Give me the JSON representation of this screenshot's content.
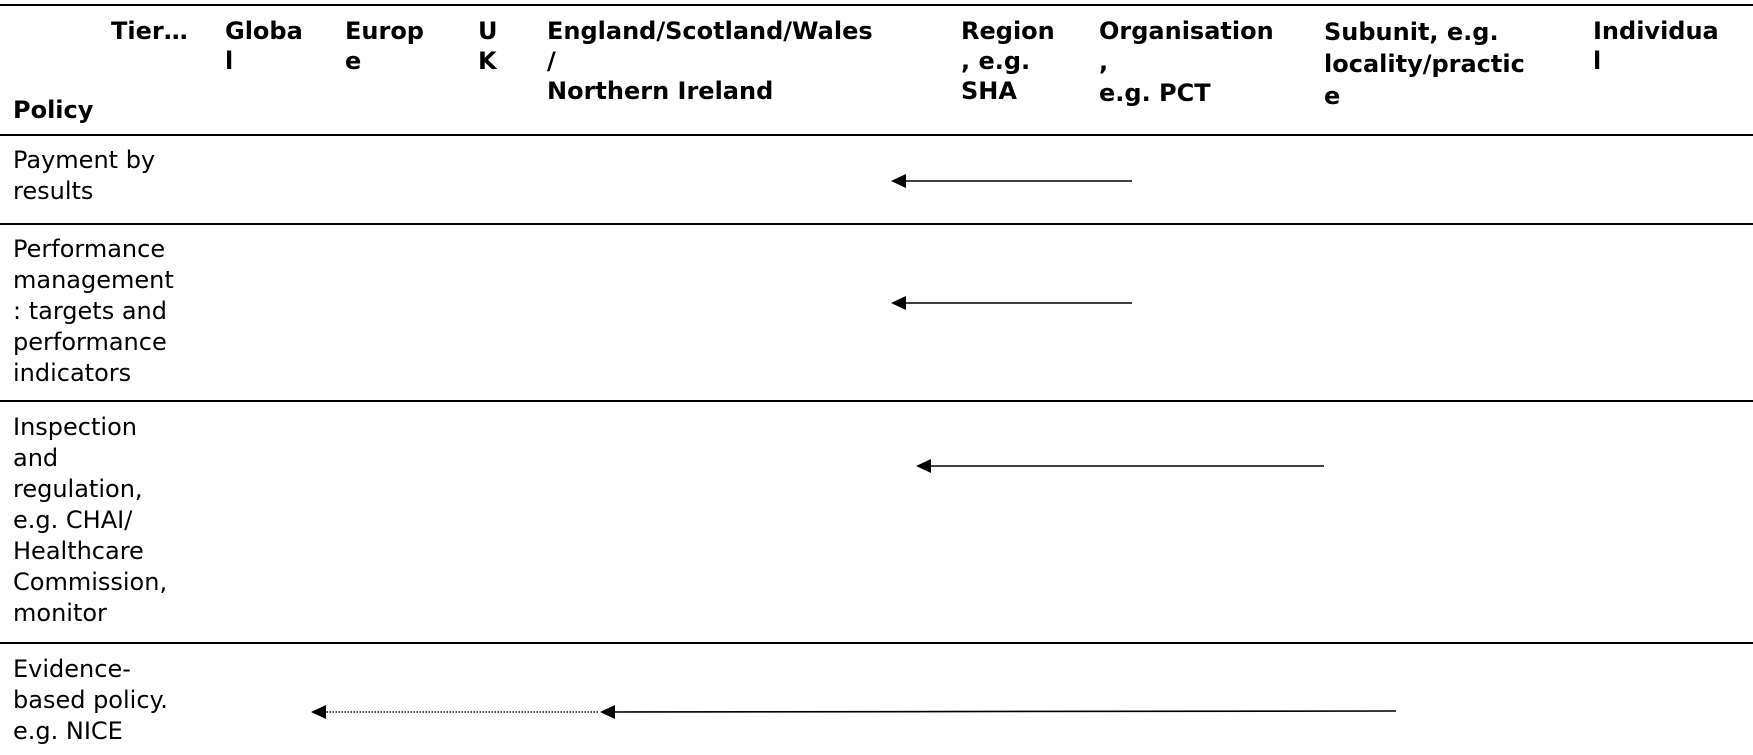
{
  "table": {
    "header": {
      "tier_label": "Tier…",
      "policy_label": "Policy",
      "columns": [
        "Globa\nl",
        "Europ\ne",
        "U\nK",
        "England/Scotland/Wales\n/\nNorthern Ireland",
        "Region\n, e.g.\nSHA",
        "Organisation\n,\ne.g. PCT",
        "Subunit, e.g.\nlocality/practic\ne",
        "Individua\nl"
      ]
    },
    "rows": [
      {
        "policy": "Payment by\nresults"
      },
      {
        "policy": "Performance\nmanagement\n: targets and\nperformance\nindicators"
      },
      {
        "policy": "Inspection\nand\nregulation,\ne.g. CHAI/\nHealthcare\nCommission,\nmonitor"
      },
      {
        "policy": "Evidence-\nbased policy.\ne.g. NICE"
      }
    ]
  }
}
